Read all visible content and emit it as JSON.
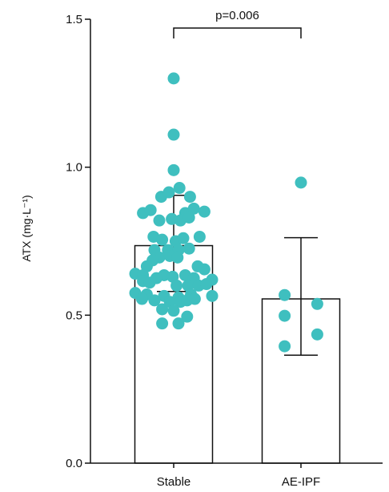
{
  "chart_data": {
    "type": "bar",
    "categories": [
      "Stable",
      "AE-IPF"
    ],
    "bars": [
      {
        "category": "Stable",
        "mean": 0.735,
        "err_low": 0.58,
        "err_high": 0.905
      },
      {
        "category": "AE-IPF",
        "mean": 0.555,
        "err_low": 0.365,
        "err_high": 0.762
      }
    ],
    "points": {
      "Stable": [
        {
          "dx": 0.0,
          "y": 1.3
        },
        {
          "dx": 0.0,
          "y": 1.11
        },
        {
          "dx": 0.0,
          "y": 0.99
        },
        {
          "dx": -0.13,
          "y": 0.9
        },
        {
          "dx": -0.05,
          "y": 0.915
        },
        {
          "dx": 0.06,
          "y": 0.93
        },
        {
          "dx": 0.17,
          "y": 0.9
        },
        {
          "dx": -0.32,
          "y": 0.845
        },
        {
          "dx": -0.24,
          "y": 0.855
        },
        {
          "dx": 0.12,
          "y": 0.845
        },
        {
          "dx": 0.21,
          "y": 0.86
        },
        {
          "dx": 0.32,
          "y": 0.85
        },
        {
          "dx": -0.15,
          "y": 0.82
        },
        {
          "dx": -0.02,
          "y": 0.825
        },
        {
          "dx": 0.07,
          "y": 0.82
        },
        {
          "dx": 0.16,
          "y": 0.83
        },
        {
          "dx": -0.21,
          "y": 0.765
        },
        {
          "dx": -0.12,
          "y": 0.755
        },
        {
          "dx": 0.02,
          "y": 0.75
        },
        {
          "dx": 0.1,
          "y": 0.76
        },
        {
          "dx": 0.27,
          "y": 0.765
        },
        {
          "dx": -0.2,
          "y": 0.72
        },
        {
          "dx": -0.06,
          "y": 0.72
        },
        {
          "dx": 0.05,
          "y": 0.72
        },
        {
          "dx": 0.16,
          "y": 0.725
        },
        {
          "dx": -0.15,
          "y": 0.695
        },
        {
          "dx": -0.04,
          "y": 0.7
        },
        {
          "dx": 0.04,
          "y": 0.695
        },
        {
          "dx": -0.22,
          "y": 0.685
        },
        {
          "dx": -0.28,
          "y": 0.665
        },
        {
          "dx": 0.25,
          "y": 0.665
        },
        {
          "dx": 0.32,
          "y": 0.655
        },
        {
          "dx": -0.4,
          "y": 0.64
        },
        {
          "dx": -0.32,
          "y": 0.635
        },
        {
          "dx": -0.1,
          "y": 0.635
        },
        {
          "dx": -0.01,
          "y": 0.63
        },
        {
          "dx": 0.12,
          "y": 0.635
        },
        {
          "dx": 0.21,
          "y": 0.625
        },
        {
          "dx": 0.4,
          "y": 0.62
        },
        {
          "dx": -0.32,
          "y": 0.615
        },
        {
          "dx": -0.25,
          "y": 0.61
        },
        {
          "dx": -0.18,
          "y": 0.625
        },
        {
          "dx": 0.03,
          "y": 0.6
        },
        {
          "dx": 0.15,
          "y": 0.6
        },
        {
          "dx": 0.26,
          "y": 0.6
        },
        {
          "dx": 0.34,
          "y": 0.605
        },
        {
          "dx": -0.4,
          "y": 0.575
        },
        {
          "dx": -0.28,
          "y": 0.57
        },
        {
          "dx": -0.1,
          "y": 0.565
        },
        {
          "dx": 0.05,
          "y": 0.56
        },
        {
          "dx": 0.18,
          "y": 0.57
        },
        {
          "dx": 0.4,
          "y": 0.565
        },
        {
          "dx": -0.33,
          "y": 0.555
        },
        {
          "dx": -0.2,
          "y": 0.55
        },
        {
          "dx": -0.04,
          "y": 0.545
        },
        {
          "dx": 0.07,
          "y": 0.545
        },
        {
          "dx": 0.14,
          "y": 0.55
        },
        {
          "dx": 0.22,
          "y": 0.555
        },
        {
          "dx": -0.12,
          "y": 0.52
        },
        {
          "dx": 0.0,
          "y": 0.515
        },
        {
          "dx": 0.14,
          "y": 0.495
        },
        {
          "dx": -0.12,
          "y": 0.472
        },
        {
          "dx": 0.05,
          "y": 0.472
        }
      ],
      "AE-IPF": [
        {
          "dx": 0.0,
          "y": 0.948
        },
        {
          "dx": -0.17,
          "y": 0.568
        },
        {
          "dx": 0.17,
          "y": 0.538
        },
        {
          "dx": -0.17,
          "y": 0.498
        },
        {
          "dx": 0.17,
          "y": 0.435
        },
        {
          "dx": -0.17,
          "y": 0.395
        }
      ]
    },
    "ylabel": "ATX (mg·L⁻¹)",
    "ylim": [
      0,
      1.5
    ],
    "yticks": [
      "0.0",
      "0.5",
      "1.0",
      "1.5"
    ],
    "annotation": {
      "text": "p=0.006",
      "from": "Stable",
      "to": "AE-IPF"
    },
    "grid": false,
    "colors": {
      "point": "#3fbfbf",
      "bar_fill": "#ffffff",
      "stroke": "#111111"
    }
  }
}
